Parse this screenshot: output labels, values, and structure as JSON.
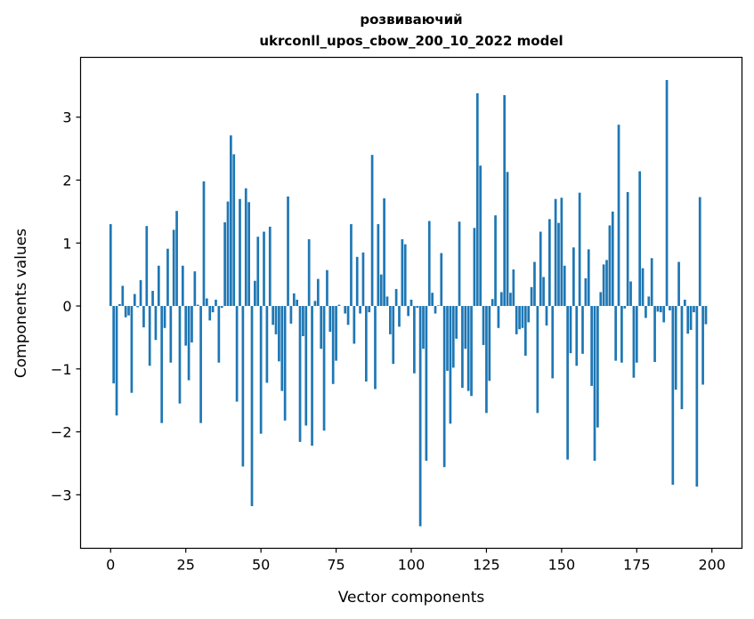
{
  "chart_data": {
    "type": "bar",
    "title_line1": "розвиваючий",
    "title_line2": "ukrconll_upos_cbow_200_10_2022 model",
    "xlabel": "Vector components",
    "ylabel": "Components values",
    "xlim": [
      -10,
      210
    ],
    "ylim": [
      -3.85,
      3.95
    ],
    "xticks": [
      0,
      25,
      50,
      75,
      100,
      125,
      150,
      175,
      200
    ],
    "yticks": [
      -3,
      -2,
      -1,
      0,
      1,
      2,
      3
    ],
    "ytick_labels": [
      "−3",
      "−2",
      "−1",
      "0",
      "1",
      "2",
      "3"
    ],
    "grid": false,
    "bar_color": "#1f77b4",
    "values": [
      1.3,
      -1.23,
      -1.74,
      0.03,
      0.32,
      -0.18,
      -0.15,
      -1.38,
      0.19,
      -0.02,
      0.41,
      -0.34,
      1.27,
      -0.95,
      0.24,
      -0.54,
      0.64,
      -1.86,
      -0.35,
      0.91,
      -0.9,
      1.21,
      1.51,
      -1.55,
      0.64,
      -0.63,
      -1.18,
      -0.58,
      0.55,
      0.02,
      -1.86,
      1.98,
      0.12,
      -0.23,
      -0.1,
      0.1,
      -0.9,
      -0.03,
      1.33,
      1.66,
      2.71,
      2.41,
      -1.52,
      1.7,
      -2.55,
      1.87,
      1.65,
      -3.18,
      0.4,
      1.1,
      -2.03,
      1.18,
      -1.22,
      1.26,
      -0.3,
      -0.45,
      -0.88,
      -1.35,
      -1.82,
      1.74,
      -0.28,
      0.2,
      0.1,
      -2.16,
      -0.48,
      -1.9,
      1.06,
      -2.22,
      0.08,
      0.43,
      -0.68,
      -1.98,
      0.57,
      -0.41,
      -1.24,
      -0.87,
      0.02,
      0.0,
      -0.12,
      -0.3,
      1.3,
      -0.6,
      0.78,
      -0.12,
      0.85,
      -1.2,
      -0.1,
      2.4,
      -1.32,
      1.3,
      0.5,
      1.71,
      0.15,
      -0.45,
      -0.92,
      0.27,
      -0.33,
      1.06,
      0.98,
      -0.16,
      0.1,
      -1.07,
      -0.03,
      -3.5,
      -0.68,
      -2.46,
      1.35,
      0.21,
      -0.12,
      0.01,
      0.84,
      -2.56,
      -1.03,
      -1.87,
      -0.98,
      -0.52,
      1.34,
      -1.3,
      -0.68,
      -1.35,
      -1.43,
      1.24,
      3.38,
      2.23,
      -0.62,
      -1.7,
      -1.19,
      0.11,
      1.44,
      -0.35,
      0.22,
      3.35,
      2.13,
      0.21,
      0.58,
      -0.45,
      -0.37,
      -0.35,
      -0.79,
      -0.26,
      0.3,
      0.7,
      -1.7,
      1.18,
      0.46,
      -0.31,
      1.38,
      -1.15,
      1.7,
      1.32,
      1.72,
      0.64,
      -2.44,
      -0.75,
      0.93,
      -0.95,
      1.8,
      -0.76,
      0.44,
      0.9,
      -1.27,
      -2.46,
      -1.93,
      0.22,
      0.66,
      0.73,
      1.28,
      1.5,
      -0.87,
      2.88,
      -0.9,
      -0.04,
      1.81,
      0.39,
      -1.14,
      -0.9,
      2.14,
      0.6,
      -0.19,
      0.15,
      0.76,
      -0.89,
      -0.09,
      -0.1,
      -0.26,
      3.59,
      -0.07,
      -2.84,
      -1.33,
      0.7,
      -1.64,
      0.1,
      -0.44,
      -0.38,
      -0.1,
      -2.87,
      1.73,
      -1.25,
      -0.29
    ]
  }
}
